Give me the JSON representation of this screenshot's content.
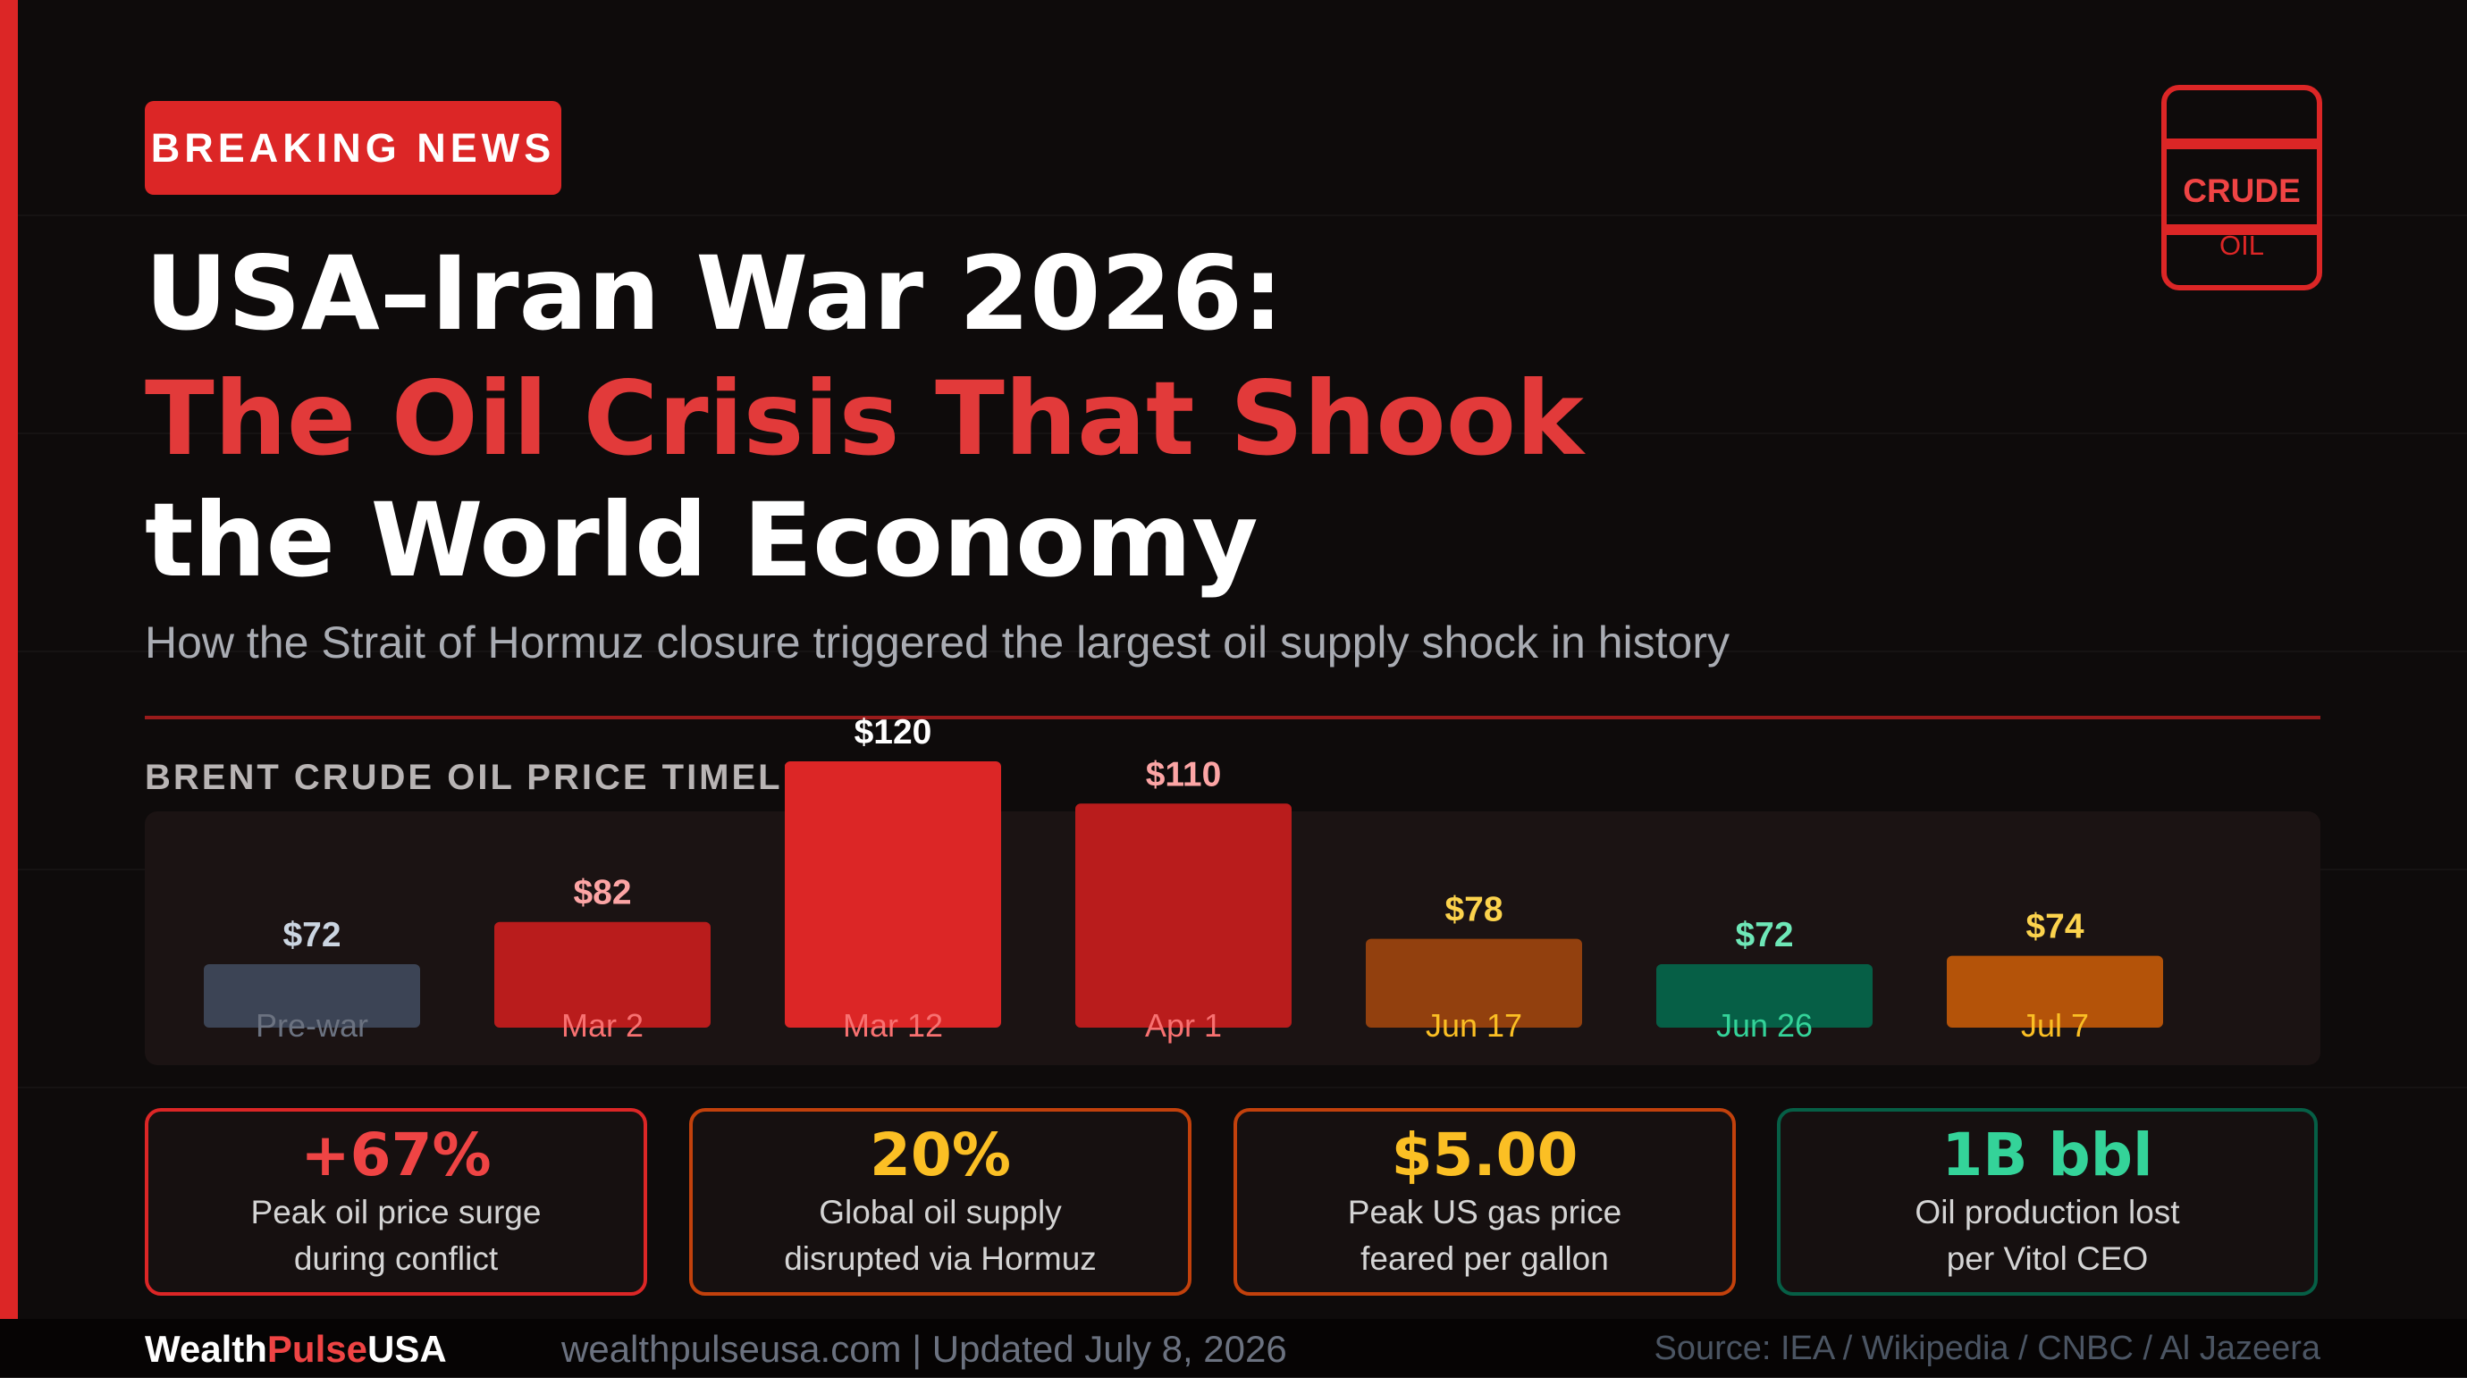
{
  "badge": "BREAKING NEWS",
  "title": {
    "line1": "USA–Iran War 2026:",
    "line2": "The Oil Crisis That Shook",
    "line3": "the World Economy"
  },
  "subtitle": "How the Strait of Hormuz closure triggered the largest oil supply shock in history",
  "icon": {
    "name": "oil-barrel-icon",
    "word1": "CRUDE",
    "word2": "OIL",
    "color": "#dc2626"
  },
  "chart_data": {
    "type": "bar",
    "title": "BRENT CRUDE OIL PRICE TIMELINE",
    "categories": [
      "Pre-war",
      "Mar 2",
      "Mar 12",
      "Apr 1",
      "Jun 17",
      "Jun 26",
      "Jul 7"
    ],
    "values": [
      72,
      82,
      120,
      110,
      78,
      72,
      74
    ],
    "value_labels": [
      "$72",
      "$82",
      "$120",
      "$110",
      "$78",
      "$72",
      "$74"
    ],
    "unit": "USD per barrel",
    "xlabel": "",
    "ylabel": "",
    "grid": false,
    "legend": "none",
    "colors": [
      "#3c4455",
      "#b91c1c",
      "#dc2626",
      "#b91c1c",
      "#92400e",
      "#065f46",
      "#b45309"
    ],
    "label_colors": [
      "#cbd5e1",
      "#fca5a5",
      "#ffffff",
      "#fca5a5",
      "#fcd34d",
      "#6ee7b7",
      "#fcd34d"
    ],
    "category_colors": [
      "#6b7280",
      "#f87171",
      "#f87171",
      "#f87171",
      "#fbbf24",
      "#34d399",
      "#fbbf24"
    ]
  },
  "stats": [
    {
      "value": "+67%",
      "line1": "Peak oil price surge",
      "line2": "during conflict",
      "color": "#ef4444",
      "border": "#dc2626"
    },
    {
      "value": "20%",
      "line1": "Global oil supply",
      "line2": "disrupted via Hormuz",
      "color": "#fbbf24",
      "border": "#c2410c"
    },
    {
      "value": "$5.00",
      "line1": "Peak US gas price",
      "line2": "feared per gallon",
      "color": "#fbbf24",
      "border": "#c2410c"
    },
    {
      "value": "1B bbl",
      "line1": "Oil production lost",
      "line2": "per Vitol CEO",
      "color": "#34d399",
      "border": "#065f46"
    }
  ],
  "footer": {
    "brand_part1": "Wealth",
    "brand_part2": "Pulse",
    "brand_part3": "USA",
    "site": "wealthpulseusa.com | Updated July 8, 2026",
    "source": "Source: IEA / Wikipedia / CNBC / Al Jazeera"
  }
}
